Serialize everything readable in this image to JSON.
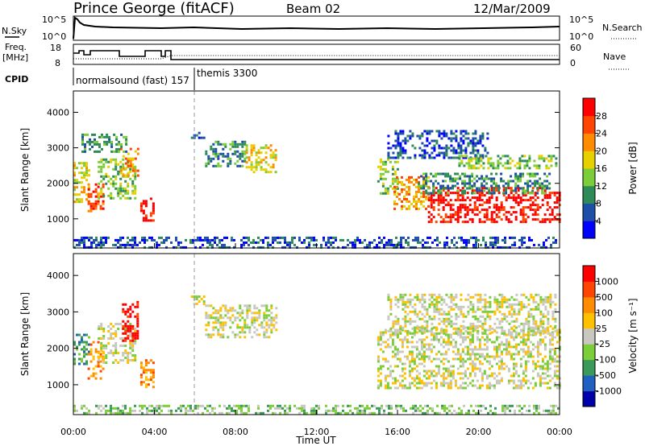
{
  "header": {
    "station": "Prince George (fitACF)",
    "beam": "Beam 02",
    "date": "12/Mar/2009"
  },
  "status_panels": {
    "nsky_label": "N.Sky",
    "nsearch_label": "N.Search",
    "noise_ticks_left": [
      "10^5",
      "10^0"
    ],
    "noise_ticks_right": [
      "10^5",
      "10^0"
    ],
    "freq_label_line1": "Freq.",
    "freq_label_line2": "[MHz]",
    "freq_ticks": [
      "18",
      "8"
    ],
    "nave_label": "Nave",
    "nave_ticks": [
      "60",
      "0"
    ],
    "cpid_label": "CPID",
    "cpid_entries": [
      {
        "text": "normalsound (fast) 157",
        "start_hour": 0
      },
      {
        "text": "themis 3300",
        "start_hour": 6
      }
    ]
  },
  "chart_data": [
    {
      "type": "heatmap",
      "name": "Power",
      "ylabel": "Slant Range [km]",
      "xlabel": "",
      "x_ticks": [
        "00:00",
        "04:00",
        "08:00",
        "12:00",
        "16:00",
        "20:00",
        "00:00"
      ],
      "xlim_hours": [
        0,
        24
      ],
      "y_ticks": [
        1000,
        2000,
        3000,
        4000
      ],
      "ylim": [
        180,
        4600
      ],
      "colorbar": {
        "label": "Power [dB]",
        "ticks": [
          4,
          8,
          12,
          16,
          20,
          24,
          28
        ],
        "colors": [
          "#0000ff",
          "#1e4fa8",
          "#2e8b57",
          "#7ccd3a",
          "#e8d000",
          "#ff8c00",
          "#ff4500",
          "#ff0000"
        ]
      },
      "regions": [
        {
          "t0": 0.0,
          "t1": 0.8,
          "r0": 1500,
          "r1": 2600,
          "level": 4
        },
        {
          "t0": 0.7,
          "t1": 1.5,
          "r0": 1200,
          "r1": 2000,
          "level": 6
        },
        {
          "t0": 1.2,
          "t1": 3.0,
          "r0": 1600,
          "r1": 2700,
          "level": 3
        },
        {
          "t0": 2.3,
          "t1": 3.2,
          "r0": 2200,
          "r1": 3000,
          "level": 5
        },
        {
          "t0": 3.3,
          "t1": 4.0,
          "r0": 950,
          "r1": 1600,
          "level": 7
        },
        {
          "t0": 0.4,
          "t1": 2.6,
          "r0": 2900,
          "r1": 3400,
          "level": 2
        },
        {
          "t0": 6.5,
          "t1": 8.5,
          "r0": 2500,
          "r1": 3200,
          "level": 2
        },
        {
          "t0": 8.5,
          "t1": 10.0,
          "r0": 2300,
          "r1": 3100,
          "level": 4
        },
        {
          "t0": 5.8,
          "t1": 6.4,
          "r0": 3250,
          "r1": 3450,
          "level": 1
        },
        {
          "t0": 15.0,
          "t1": 16.0,
          "r0": 1700,
          "r1": 2700,
          "level": 3
        },
        {
          "t0": 15.8,
          "t1": 17.5,
          "r0": 1300,
          "r1": 2200,
          "level": 5
        },
        {
          "t0": 17.5,
          "t1": 24.0,
          "r0": 900,
          "r1": 1900,
          "level": 7
        },
        {
          "t0": 17.0,
          "t1": 23.5,
          "r0": 1700,
          "r1": 2300,
          "level": 2
        },
        {
          "t0": 15.5,
          "t1": 20.5,
          "r0": 2700,
          "r1": 3500,
          "level": 1
        },
        {
          "t0": 19.0,
          "t1": 23.8,
          "r0": 2400,
          "r1": 2800,
          "level": 3
        },
        {
          "t0": 0.0,
          "t1": 24.0,
          "r0": 200,
          "r1": 500,
          "level": 1
        }
      ]
    },
    {
      "type": "heatmap",
      "name": "Velocity",
      "ylabel": "Slant Range [km]",
      "xlabel": "Time UT",
      "x_ticks": [
        "00:00",
        "04:00",
        "08:00",
        "12:00",
        "16:00",
        "20:00",
        "00:00"
      ],
      "xlim_hours": [
        0,
        24
      ],
      "y_ticks": [
        1000,
        2000,
        3000,
        4000
      ],
      "ylim": [
        180,
        4600
      ],
      "colorbar": {
        "label": "Velocity [m s⁻¹]",
        "ticks": [
          "1000",
          "500",
          "100",
          "25",
          "-25",
          "-100",
          "-500",
          "-1000"
        ],
        "colors": [
          "#0000aa",
          "#2060c0",
          "#3a9a5a",
          "#7ccd3a",
          "#c8c8c0",
          "#ffc000",
          "#ff8c00",
          "#ff4500",
          "#ff0000"
        ]
      },
      "regions": [
        {
          "t0": 0.0,
          "t1": 0.8,
          "r0": 1600,
          "r1": 2400,
          "level": 2
        },
        {
          "t0": 0.7,
          "t1": 1.5,
          "r0": 1200,
          "r1": 2200,
          "level": 6
        },
        {
          "t0": 1.2,
          "t1": 3.0,
          "r0": 1600,
          "r1": 2700,
          "level": 4
        },
        {
          "t0": 2.4,
          "t1": 3.2,
          "r0": 2200,
          "r1": 3300,
          "level": 8
        },
        {
          "t0": 3.3,
          "t1": 4.0,
          "r0": 950,
          "r1": 1700,
          "level": 6
        },
        {
          "t0": 6.5,
          "t1": 10.0,
          "r0": 2300,
          "r1": 3200,
          "level": 4
        },
        {
          "t0": 5.8,
          "t1": 6.4,
          "r0": 3250,
          "r1": 3450,
          "level": 4
        },
        {
          "t0": 15.0,
          "t1": 24.0,
          "r0": 900,
          "r1": 2600,
          "level": 4
        },
        {
          "t0": 15.5,
          "t1": 23.8,
          "r0": 2400,
          "r1": 3500,
          "level": 4
        },
        {
          "t0": 0.0,
          "t1": 24.0,
          "r0": 200,
          "r1": 450,
          "level": 3
        }
      ]
    }
  ]
}
